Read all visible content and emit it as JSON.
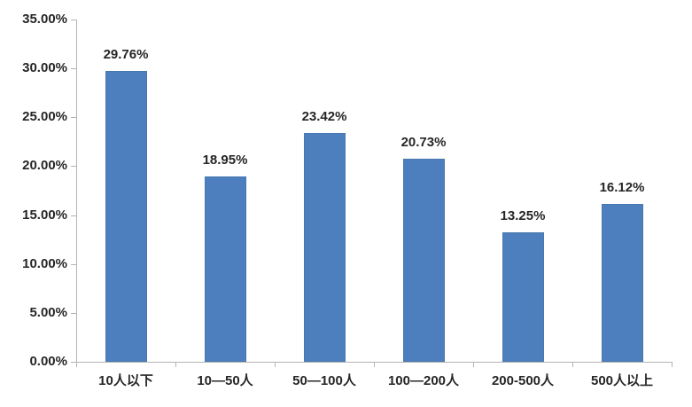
{
  "chart_data": {
    "type": "bar",
    "title": "",
    "xlabel": "",
    "ylabel": "",
    "categories": [
      "10人以下",
      "10—50人",
      "50—100人",
      "100—200人",
      "200-500人",
      "500人以上"
    ],
    "values": [
      29.76,
      18.95,
      23.42,
      20.73,
      13.25,
      16.12
    ],
    "value_labels": [
      "29.76%",
      "18.95%",
      "23.42%",
      "20.73%",
      "13.25%",
      "16.12%"
    ],
    "ylim": [
      0,
      35
    ],
    "ytick_step": 5,
    "ytick_labels": [
      "0.00%",
      "5.00%",
      "10.00%",
      "15.00%",
      "20.00%",
      "25.00%",
      "30.00%",
      "35.00%"
    ],
    "grid": false,
    "legend_position": "none",
    "colors": {
      "bar_fill": "#4d7fbe",
      "bar_border": "#4778b0",
      "axis": "#b3b3b3",
      "text": "#262626"
    }
  }
}
